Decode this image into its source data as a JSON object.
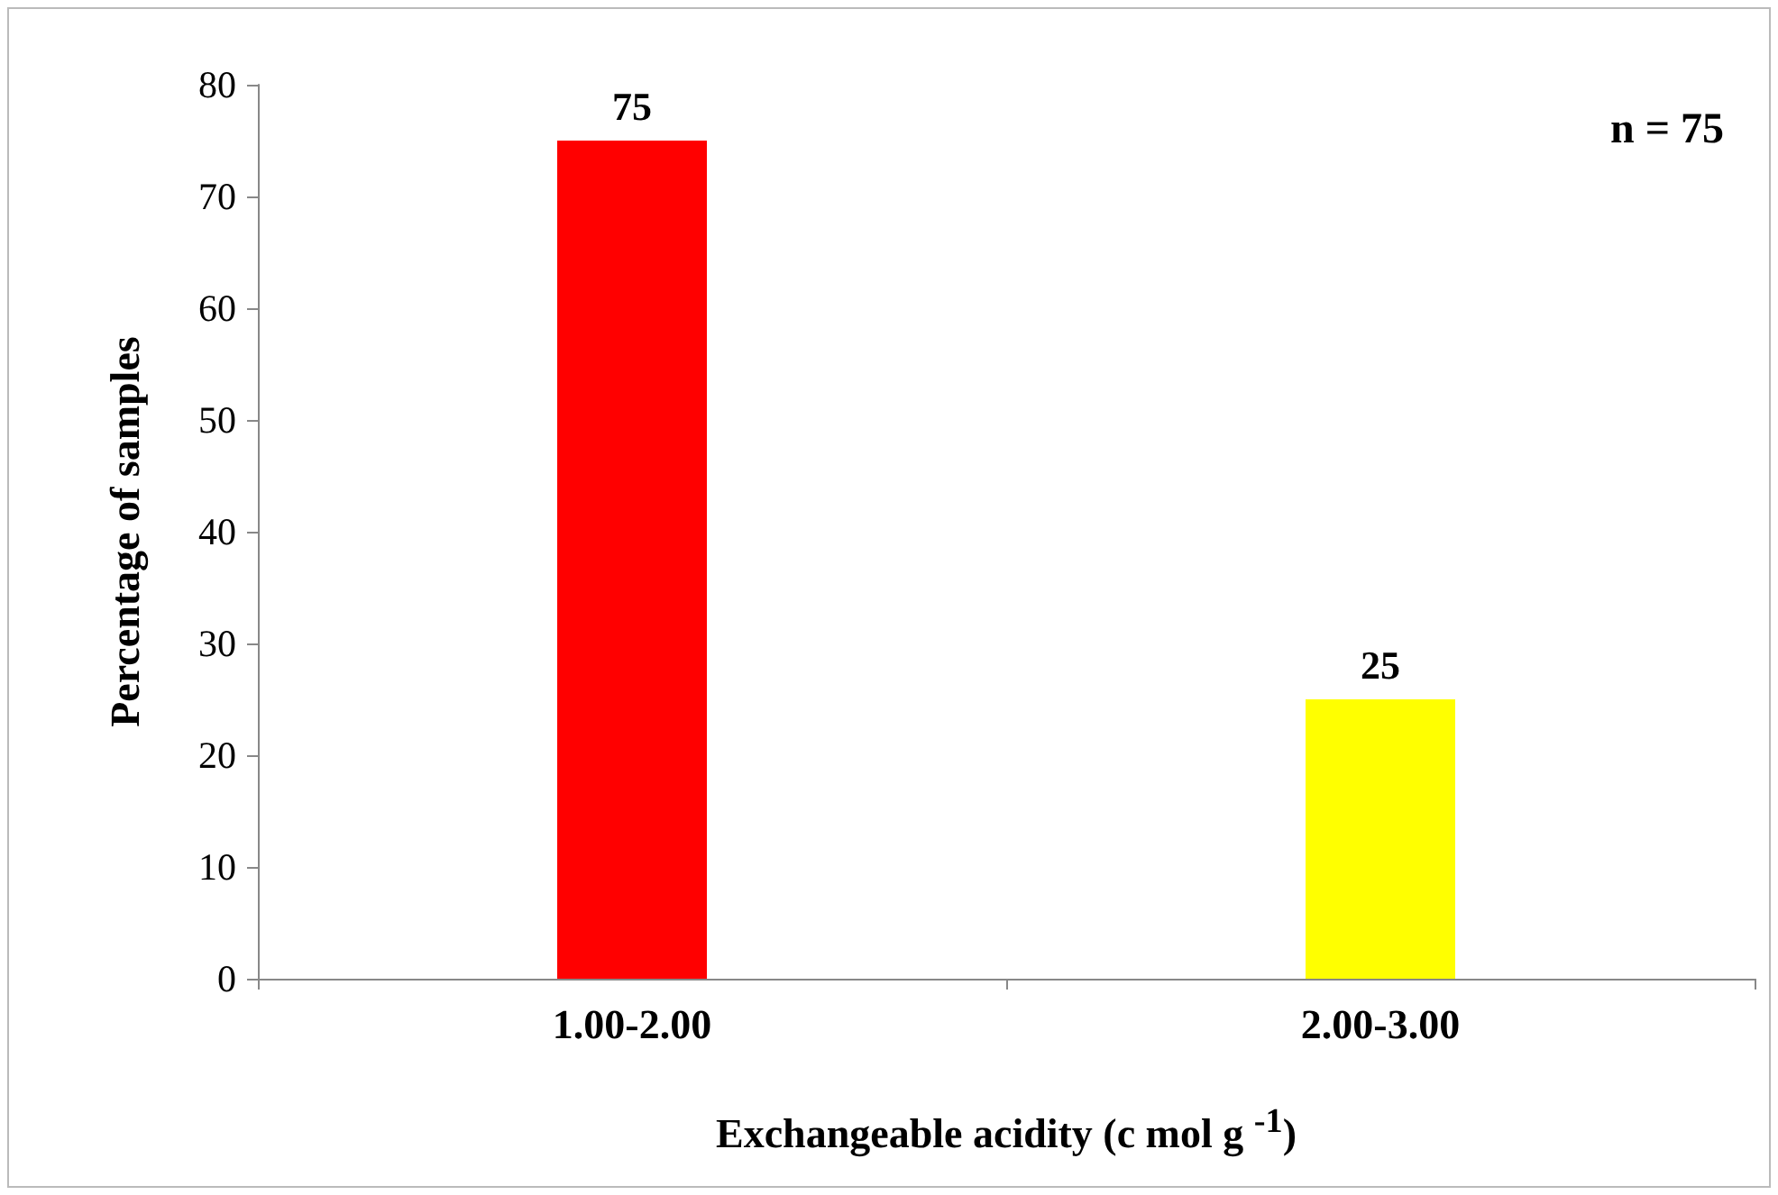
{
  "chart_data": {
    "type": "bar",
    "xlabel": "Exchangeable acidity (c mol g $^{-1}$)",
    "ylabel": "Percentage of samples",
    "categories": [
      "1.00-2.00",
      "2.00-3.00"
    ],
    "values": [
      75,
      25
    ],
    "colors": [
      "#ff0000",
      "#ffff00"
    ],
    "ylim": [
      0,
      80
    ],
    "yticks": [
      0,
      10,
      20,
      30,
      40,
      50,
      60,
      70,
      80
    ],
    "data_labels": true,
    "annotations": [
      "n = 75"
    ]
  }
}
